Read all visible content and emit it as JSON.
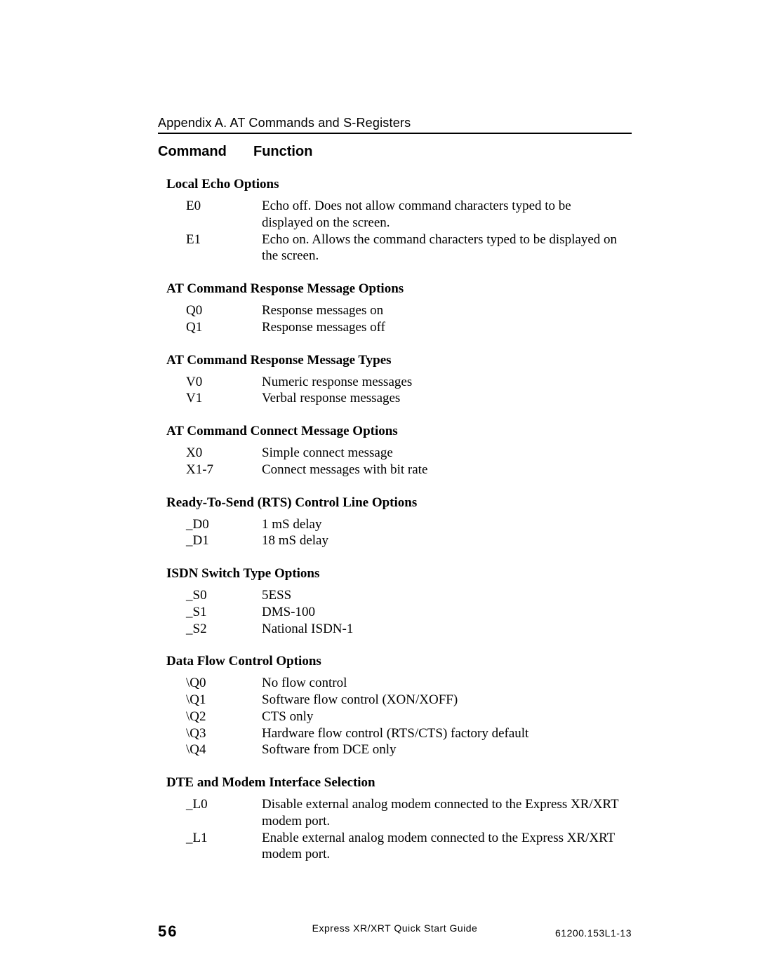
{
  "header": {
    "appendix": "Appendix A.  AT Commands and S-Registers"
  },
  "columns": {
    "command": "Command",
    "function": "Function"
  },
  "sections": [
    {
      "title": "Local Echo Options",
      "rows": [
        {
          "cmd": "E0",
          "func": "Echo off.  Does not allow command characters typed to be displayed on the screen."
        },
        {
          "cmd": "E1",
          "func": "Echo on.  Allows the command characters typed to be displayed on the screen."
        }
      ]
    },
    {
      "title": "AT Command Response Message Options",
      "rows": [
        {
          "cmd": "Q0",
          "func": "Response messages on"
        },
        {
          "cmd": "Q1",
          "func": "Response messages off"
        }
      ]
    },
    {
      "title": "AT Command Response Message Types",
      "rows": [
        {
          "cmd": "V0",
          "func": "Numeric response messages"
        },
        {
          "cmd": "V1",
          "func": "Verbal response messages"
        }
      ]
    },
    {
      "title": "AT Command Connect Message Options",
      "rows": [
        {
          "cmd": "X0",
          "func": "Simple connect message"
        },
        {
          "cmd": "X1-7",
          "func": "Connect messages with bit rate"
        }
      ]
    },
    {
      "title": "Ready-To-Send (RTS) Control Line Options",
      "rows": [
        {
          "cmd": "_D0",
          "func": "1 mS delay"
        },
        {
          "cmd": "_D1",
          "func": "18 mS delay"
        }
      ]
    },
    {
      "title": "ISDN Switch Type Options",
      "rows": [
        {
          "cmd": "_S0",
          "func": "5ESS"
        },
        {
          "cmd": "_S1",
          "func": "DMS-100"
        },
        {
          "cmd": "_S2",
          "func": "National ISDN-1"
        }
      ]
    },
    {
      "title": "Data Flow Control Options",
      "rows": [
        {
          "cmd": "\\Q0",
          "func": "No flow control"
        },
        {
          "cmd": "\\Q1",
          "func": "Software flow control (XON/XOFF)"
        },
        {
          "cmd": "\\Q2",
          "func": "CTS only"
        },
        {
          "cmd": "\\Q3",
          "func": "Hardware flow control (RTS/CTS) factory default"
        },
        {
          "cmd": "\\Q4",
          "func": "Software from DCE only"
        }
      ]
    },
    {
      "title": "DTE and Modem Interface Selection",
      "rows": [
        {
          "cmd": "_L0",
          "func": "Disable external analog modem connected to the Express XR/XRT modem port."
        },
        {
          "cmd": "_L1",
          "func": "Enable external analog modem connected to the Express XR/XRT modem port."
        }
      ]
    }
  ],
  "footer": {
    "page_number": "56",
    "title": "Express XR/XRT Quick Start Guide",
    "doc_id": "61200.153L1-13"
  }
}
